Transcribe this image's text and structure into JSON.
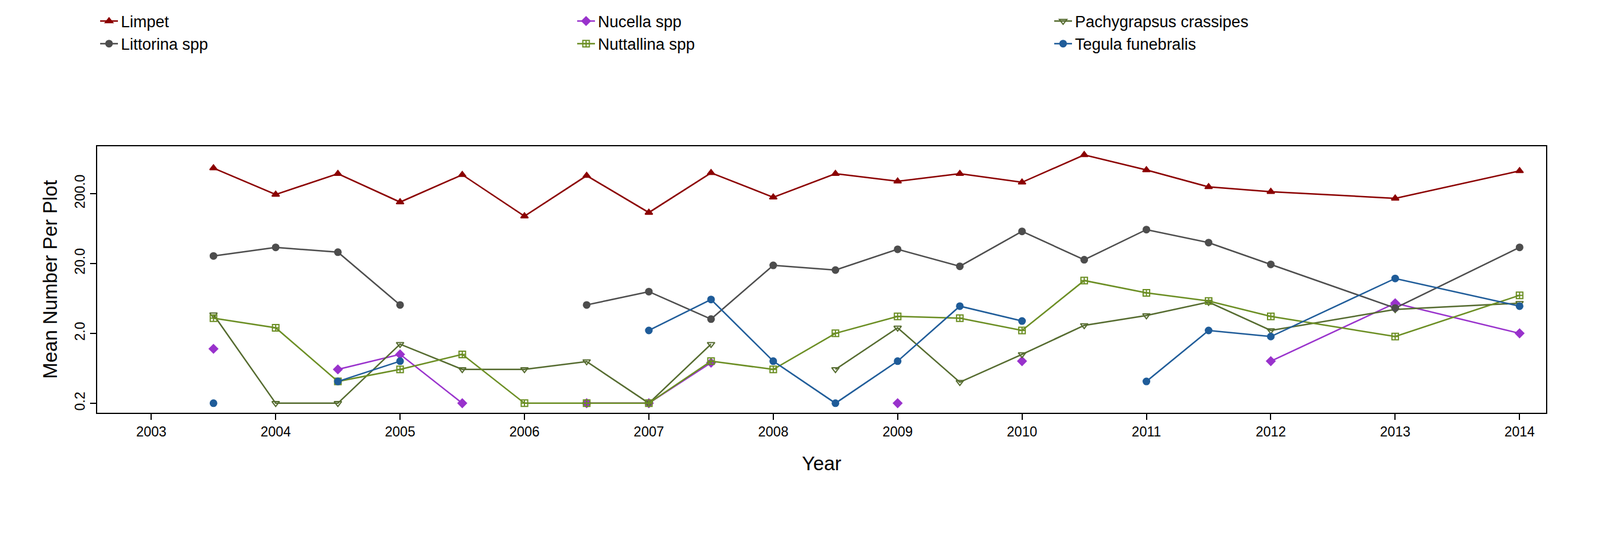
{
  "chart_data": {
    "type": "line",
    "x_label": "Year",
    "y_label": "Mean Number Per Plot",
    "x": [
      2003.5,
      2004,
      2004.5,
      2005,
      2005.5,
      2006,
      2006.5,
      2007,
      2007.5,
      2008,
      2008.5,
      2009,
      2009.5,
      2010,
      2010.5,
      2011,
      2011.5,
      2012,
      2013,
      2014
    ],
    "xlim": [
      2002.565,
      2014.213
    ],
    "xticks": [
      2003,
      2004,
      2005,
      2006,
      2007,
      2008,
      2009,
      2010,
      2011,
      2012,
      2013,
      2014
    ],
    "ylim": [
      0.146,
      950
    ],
    "yticks": [
      {
        "value": 0.2,
        "label": "0.2"
      },
      {
        "value": 2,
        "label": "2.0"
      },
      {
        "value": 20,
        "label": "20.0"
      },
      {
        "value": 200,
        "label": "200.0"
      }
    ],
    "log": "y",
    "grid": false,
    "legend": "top-left",
    "series": [
      {
        "name": "Limpet",
        "color": "#8b0000",
        "marker": "triangle-up",
        "values": [
          463,
          194,
          385,
          151,
          372,
          95,
          361,
          107,
          396,
          177,
          385,
          300,
          385,
          290,
          716,
          435,
          249,
          213,
          171,
          422
        ]
      },
      {
        "name": "Nucella spp",
        "color": "#9932cc",
        "marker": "diamond",
        "values": [
          1.2,
          null,
          0.61,
          1.0,
          0.2,
          null,
          0.2,
          0.2,
          0.76,
          null,
          null,
          0.2,
          null,
          0.8,
          null,
          null,
          null,
          0.8,
          5.4,
          2.0
        ]
      },
      {
        "name": "Pachygrapsus crassipes",
        "color": "#556b2f",
        "marker": "triangle-down-open",
        "values": [
          3.7,
          0.2,
          0.2,
          1.4,
          0.61,
          0.61,
          0.79,
          0.2,
          1.4,
          null,
          0.61,
          2.4,
          0.4,
          1.0,
          2.6,
          3.6,
          5.6,
          2.2,
          4.4,
          5.4
        ]
      },
      {
        "name": "Littorina spp",
        "color": "#4d4d4d",
        "marker": "circle",
        "values": [
          25.6,
          34,
          29,
          5.1,
          null,
          null,
          5.1,
          7.9,
          3.2,
          18.8,
          16.1,
          31.9,
          18.2,
          57.6,
          22.6,
          61,
          39.7,
          19.4,
          4.6,
          34
        ]
      },
      {
        "name": "Nuttallina spp",
        "color": "#6b8e23",
        "marker": "square-cross-open",
        "values": [
          3.3,
          2.4,
          0.41,
          0.61,
          1.0,
          0.2,
          0.2,
          0.2,
          0.8,
          0.61,
          2.0,
          3.5,
          3.3,
          2.2,
          11.4,
          7.6,
          5.8,
          3.5,
          1.8,
          7.0
        ]
      },
      {
        "name": "Tegula funebralis",
        "color": "#1f5c99",
        "marker": "circle",
        "values": [
          0.2,
          null,
          0.41,
          0.8,
          null,
          null,
          null,
          2.2,
          6.1,
          0.8,
          0.2,
          0.8,
          4.9,
          3.0,
          null,
          0.41,
          2.2,
          1.8,
          12.2,
          4.9
        ]
      }
    ]
  }
}
